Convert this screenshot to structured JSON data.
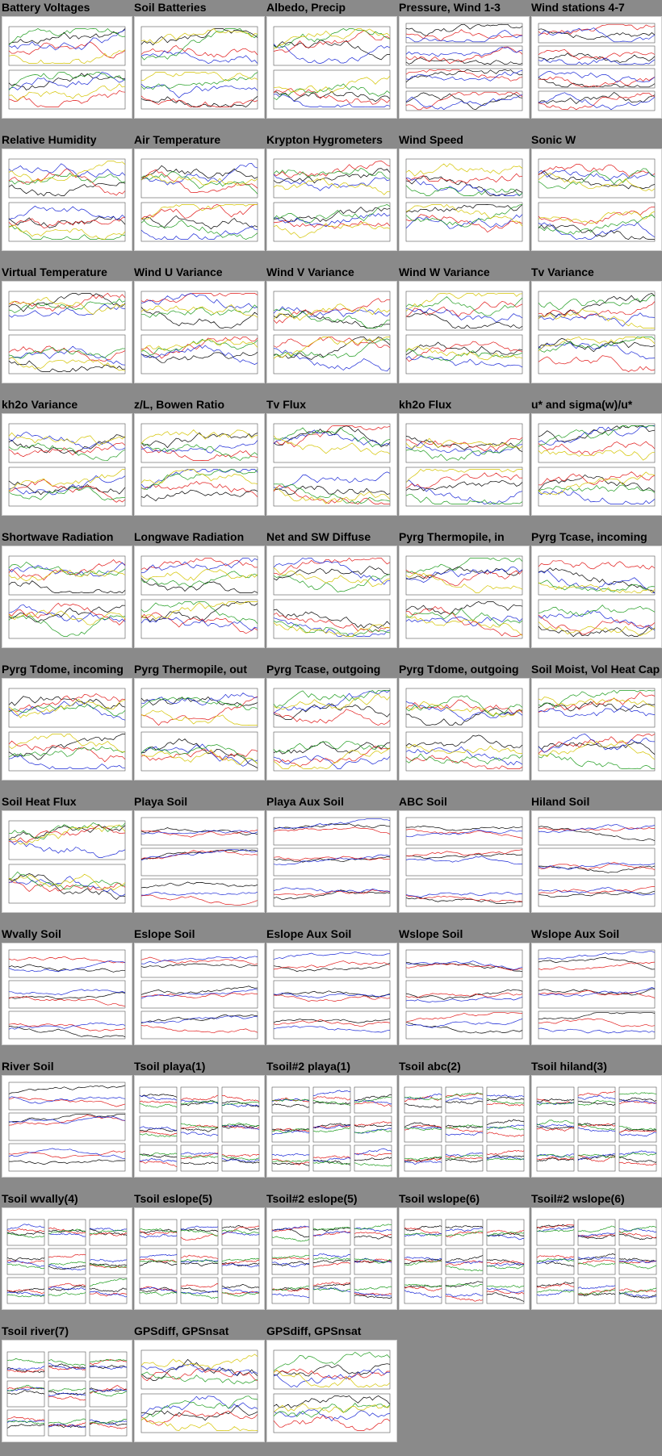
{
  "page": {
    "background": "#8a8a8a",
    "series_colors": [
      "#000000",
      "#e11919",
      "#1a28d6",
      "#1f9c1f",
      "#d4c400",
      "#c23cc2",
      "#ff8c00",
      "#00a6a6",
      "#7f7f7f"
    ]
  },
  "thumbnails": [
    {
      "title": "Battery Voltages",
      "kind": "two-panel"
    },
    {
      "title": "Soil Batteries",
      "kind": "two-panel"
    },
    {
      "title": "Albedo, Precip",
      "kind": "two-panel"
    },
    {
      "title": "Pressure, Wind 1-3",
      "kind": "four-panel"
    },
    {
      "title": "Wind stations 4-7",
      "kind": "four-panel"
    },
    {
      "title": "Relative Humidity",
      "kind": "two-panel"
    },
    {
      "title": "Air Temperature",
      "kind": "two-panel"
    },
    {
      "title": "Krypton Hygrometers",
      "kind": "two-panel"
    },
    {
      "title": "Wind Speed",
      "kind": "two-panel"
    },
    {
      "title": "Sonic W",
      "kind": "two-panel"
    },
    {
      "title": "Virtual Temperature",
      "kind": "two-panel"
    },
    {
      "title": "Wind U Variance",
      "kind": "two-panel"
    },
    {
      "title": "Wind V Variance",
      "kind": "two-panel"
    },
    {
      "title": "Wind W Variance",
      "kind": "two-panel"
    },
    {
      "title": "Tv Variance",
      "kind": "two-panel"
    },
    {
      "title": "kh2o Variance",
      "kind": "two-panel"
    },
    {
      "title": "z/L, Bowen Ratio",
      "kind": "two-panel"
    },
    {
      "title": "Tv Flux",
      "kind": "two-panel"
    },
    {
      "title": "kh2o Flux",
      "kind": "two-panel"
    },
    {
      "title": "u* and sigma(w)/u*",
      "kind": "two-panel"
    },
    {
      "title": "Shortwave Radiation",
      "kind": "two-panel"
    },
    {
      "title": "Longwave Radiation",
      "kind": "two-panel"
    },
    {
      "title": "Net and SW Diffuse",
      "kind": "two-panel"
    },
    {
      "title": "Pyrg Thermopile, in",
      "kind": "two-panel"
    },
    {
      "title": "Pyrg Tcase, incoming",
      "kind": "two-panel"
    },
    {
      "title": "Pyrg Tdome, incoming",
      "kind": "two-panel"
    },
    {
      "title": "Pyrg Thermopile, out",
      "kind": "two-panel"
    },
    {
      "title": "Pyrg Tcase, outgoing",
      "kind": "two-panel"
    },
    {
      "title": "Pyrg Tdome, outgoing",
      "kind": "two-panel"
    },
    {
      "title": "Soil Moist, Vol Heat Cap",
      "kind": "two-panel"
    },
    {
      "title": "Soil Heat Flux",
      "kind": "two-panel"
    },
    {
      "title": "Playa Soil",
      "kind": "three-panel"
    },
    {
      "title": "Playa Aux Soil",
      "kind": "three-panel"
    },
    {
      "title": "ABC Soil",
      "kind": "three-panel"
    },
    {
      "title": "Hiland Soil",
      "kind": "three-panel"
    },
    {
      "title": "Wvally Soil",
      "kind": "three-panel"
    },
    {
      "title": "Eslope Soil",
      "kind": "three-panel"
    },
    {
      "title": "Eslope Aux Soil",
      "kind": "three-panel"
    },
    {
      "title": "Wslope Soil",
      "kind": "three-panel"
    },
    {
      "title": "Wslope Aux Soil",
      "kind": "three-panel"
    },
    {
      "title": "River Soil",
      "kind": "three-panel"
    },
    {
      "title": "Tsoil playa(1)",
      "kind": "profile-grid"
    },
    {
      "title": "Tsoil#2 playa(1)",
      "kind": "profile-grid"
    },
    {
      "title": "Tsoil abc(2)",
      "kind": "profile-grid"
    },
    {
      "title": "Tsoil hiland(3)",
      "kind": "profile-grid"
    },
    {
      "title": "Tsoil wvally(4)",
      "kind": "profile-grid"
    },
    {
      "title": "Tsoil eslope(5)",
      "kind": "profile-grid"
    },
    {
      "title": "Tsoil#2 eslope(5)",
      "kind": "profile-grid"
    },
    {
      "title": "Tsoil wslope(6)",
      "kind": "profile-grid"
    },
    {
      "title": "Tsoil#2 wslope(6)",
      "kind": "profile-grid"
    },
    {
      "title": "Tsoil river(7)",
      "kind": "profile-grid"
    },
    {
      "title": "GPSdiff, GPSnsat",
      "kind": "two-panel"
    },
    {
      "title": "GPSdiff, GPSnsat",
      "kind": "two-panel"
    }
  ]
}
